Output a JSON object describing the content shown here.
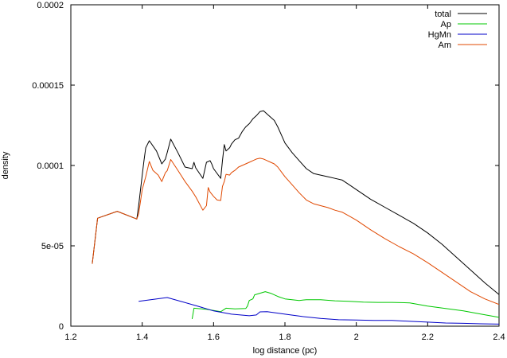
{
  "chart_data": {
    "type": "line",
    "xlabel": "log distance (pc)",
    "ylabel": "density",
    "xlim": [
      1.2,
      2.4
    ],
    "ylim": [
      0,
      0.0002
    ],
    "x_ticks": [
      1.2,
      1.4,
      1.6,
      1.8,
      2.0,
      2.2,
      2.4
    ],
    "x_tick_labels": [
      "1.2",
      "1.4",
      "1.6",
      "1.8",
      "2",
      "2.2",
      "2.4"
    ],
    "y_ticks": [
      0,
      5e-05,
      0.0001,
      0.00015,
      0.0002
    ],
    "y_tick_labels": [
      "0",
      "5e-05",
      "0.0001",
      "0.00015",
      "0.0002"
    ],
    "grid": false,
    "legend_position": "top-right",
    "series": [
      {
        "name": "total",
        "color": "#000000",
        "points": [
          [
            1.26,
            3.88e-05
          ],
          [
            1.275,
            6.72e-05
          ],
          [
            1.33,
            7.15e-05
          ],
          [
            1.385,
            6.67e-05
          ],
          [
            1.39,
            7.5e-05
          ],
          [
            1.4,
            9.4e-05
          ],
          [
            1.405,
            0.000103
          ],
          [
            1.41,
            0.000111
          ],
          [
            1.42,
            0.0001154
          ],
          [
            1.44,
            0.000109
          ],
          [
            1.455,
            0.000101
          ],
          [
            1.465,
            0.000104
          ],
          [
            1.47,
            0.000108
          ],
          [
            1.48,
            0.0001164
          ],
          [
            1.5,
            0.000108
          ],
          [
            1.52,
            9.9e-05
          ],
          [
            1.54,
            9.8e-05
          ],
          [
            1.545,
            0.000102
          ],
          [
            1.55,
            9.85e-05
          ],
          [
            1.57,
            9.2e-05
          ],
          [
            1.58,
            0.000102
          ],
          [
            1.59,
            0.000103
          ],
          [
            1.595,
            0.0001009
          ],
          [
            1.6,
            9.8e-05
          ],
          [
            1.62,
            9.2e-05
          ],
          [
            1.625,
            0.000103
          ],
          [
            1.63,
            0.000113
          ],
          [
            1.635,
            0.000109
          ],
          [
            1.645,
            0.000111
          ],
          [
            1.65,
            0.0001133
          ],
          [
            1.66,
            0.000116
          ],
          [
            1.67,
            0.000117
          ],
          [
            1.68,
            0.000121
          ],
          [
            1.69,
            0.000124
          ],
          [
            1.7,
            0.000126
          ],
          [
            1.71,
            0.000129
          ],
          [
            1.72,
            0.000131
          ],
          [
            1.73,
            0.0001335
          ],
          [
            1.74,
            0.000134
          ],
          [
            1.75,
            0.000132
          ],
          [
            1.76,
            0.00013
          ],
          [
            1.77,
            0.000128
          ],
          [
            1.78,
            0.000124
          ],
          [
            1.79,
            0.000119
          ],
          [
            1.8,
            0.000114
          ],
          [
            1.82,
            0.000108
          ],
          [
            1.84,
            0.000103
          ],
          [
            1.86,
            9.8e-05
          ],
          [
            1.88,
            9.5e-05
          ],
          [
            1.9,
            9.4e-05
          ],
          [
            1.92,
            9.3e-05
          ],
          [
            1.94,
            9.2e-05
          ],
          [
            1.96,
            9.1e-05
          ],
          [
            1.98,
            8.8e-05
          ],
          [
            2.0,
            8.5e-05
          ],
          [
            2.04,
            7.9e-05
          ],
          [
            2.08,
            7.4e-05
          ],
          [
            2.12,
            6.9e-05
          ],
          [
            2.16,
            6.4e-05
          ],
          [
            2.2,
            5.8e-05
          ],
          [
            2.24,
            5.1e-05
          ],
          [
            2.28,
            4.3e-05
          ],
          [
            2.32,
            3.5e-05
          ],
          [
            2.36,
            2.7e-05
          ],
          [
            2.4,
            1.97e-05
          ]
        ]
      },
      {
        "name": "Ap",
        "color": "#00c800",
        "points": [
          [
            1.54,
            4.5e-06
          ],
          [
            1.545,
            1.12e-05
          ],
          [
            1.58,
            1.05e-05
          ],
          [
            1.62,
            9e-06
          ],
          [
            1.635,
            1.12e-05
          ],
          [
            1.66,
            1.08e-05
          ],
          [
            1.69,
            1.1e-05
          ],
          [
            1.695,
            1.25e-05
          ],
          [
            1.7,
            1.6e-05
          ],
          [
            1.71,
            1.7e-05
          ],
          [
            1.715,
            1.95e-05
          ],
          [
            1.73,
            2.05e-05
          ],
          [
            1.745,
            2.15e-05
          ],
          [
            1.76,
            2.05e-05
          ],
          [
            1.78,
            1.85e-05
          ],
          [
            1.8,
            1.7e-05
          ],
          [
            1.84,
            1.6e-05
          ],
          [
            1.86,
            1.65e-05
          ],
          [
            1.9,
            1.65e-05
          ],
          [
            1.94,
            1.58e-05
          ],
          [
            1.98,
            1.55e-05
          ],
          [
            2.02,
            1.5e-05
          ],
          [
            2.06,
            1.48e-05
          ],
          [
            2.1,
            1.48e-05
          ],
          [
            2.15,
            1.45e-05
          ],
          [
            2.2,
            1.25e-05
          ],
          [
            2.25,
            1.1e-05
          ],
          [
            2.3,
            9.5e-06
          ],
          [
            2.35,
            7.5e-06
          ],
          [
            2.4,
            5.5e-06
          ]
        ]
      },
      {
        "name": "HgMn",
        "color": "#0000c8",
        "points": [
          [
            1.39,
            1.55e-05
          ],
          [
            1.47,
            1.78e-05
          ],
          [
            1.55,
            1.28e-05
          ],
          [
            1.6,
            9.5e-06
          ],
          [
            1.65,
            7.5e-06
          ],
          [
            1.7,
            6.5e-06
          ],
          [
            1.72,
            7e-06
          ],
          [
            1.73,
            8.9e-06
          ],
          [
            1.75,
            9e-06
          ],
          [
            1.8,
            7.5e-06
          ],
          [
            1.85,
            6e-06
          ],
          [
            1.9,
            4.8e-06
          ],
          [
            1.95,
            4e-06
          ],
          [
            2.0,
            3.8e-06
          ],
          [
            2.05,
            3.6e-06
          ],
          [
            2.1,
            3.6e-06
          ],
          [
            2.15,
            3e-06
          ],
          [
            2.2,
            2.5e-06
          ],
          [
            2.25,
            2e-06
          ],
          [
            2.3,
            1.8e-06
          ],
          [
            2.35,
            1.5e-06
          ],
          [
            2.4,
            1.3e-06
          ]
        ]
      },
      {
        "name": "Am",
        "color": "#e04800",
        "points": [
          [
            1.26,
            3.88e-05
          ],
          [
            1.275,
            6.72e-05
          ],
          [
            1.33,
            7.15e-05
          ],
          [
            1.385,
            6.67e-05
          ],
          [
            1.39,
            7e-05
          ],
          [
            1.4,
            8.5e-05
          ],
          [
            1.41,
            9.3e-05
          ],
          [
            1.42,
            0.0001025
          ],
          [
            1.43,
            9.7e-05
          ],
          [
            1.445,
            9.4e-05
          ],
          [
            1.455,
            9e-05
          ],
          [
            1.465,
            9.55e-05
          ],
          [
            1.47,
            9.68e-05
          ],
          [
            1.48,
            0.0001037
          ],
          [
            1.5,
            9.7e-05
          ],
          [
            1.52,
            9e-05
          ],
          [
            1.54,
            8.4e-05
          ],
          [
            1.55,
            8.05e-05
          ],
          [
            1.57,
            7.22e-05
          ],
          [
            1.58,
            7.5e-05
          ],
          [
            1.585,
            8.63e-05
          ],
          [
            1.59,
            8.35e-05
          ],
          [
            1.6,
            8.08e-05
          ],
          [
            1.61,
            7.85e-05
          ],
          [
            1.62,
            7.82e-05
          ],
          [
            1.625,
            8.7e-05
          ],
          [
            1.63,
            9e-05
          ],
          [
            1.635,
            9.45e-05
          ],
          [
            1.645,
            9.4e-05
          ],
          [
            1.65,
            9.55e-05
          ],
          [
            1.66,
            9.7e-05
          ],
          [
            1.67,
            9.9e-05
          ],
          [
            1.68,
            0.0001
          ],
          [
            1.69,
            0.000101
          ],
          [
            1.7,
            0.000102
          ],
          [
            1.71,
            0.000103
          ],
          [
            1.72,
            0.000104
          ],
          [
            1.73,
            0.0001045
          ],
          [
            1.74,
            0.000104
          ],
          [
            1.75,
            0.000103
          ],
          [
            1.76,
            0.000102
          ],
          [
            1.77,
            0.000101
          ],
          [
            1.78,
            9.9e-05
          ],
          [
            1.79,
            9.6e-05
          ],
          [
            1.8,
            9.3e-05
          ],
          [
            1.82,
            8.8e-05
          ],
          [
            1.84,
            8.3e-05
          ],
          [
            1.86,
            7.85e-05
          ],
          [
            1.88,
            7.62e-05
          ],
          [
            1.9,
            7.5e-05
          ],
          [
            1.92,
            7.38e-05
          ],
          [
            1.94,
            7.22e-05
          ],
          [
            1.96,
            7.1e-05
          ],
          [
            1.98,
            6.85e-05
          ],
          [
            2.0,
            6.6e-05
          ],
          [
            2.04,
            6e-05
          ],
          [
            2.08,
            5.45e-05
          ],
          [
            2.12,
            4.95e-05
          ],
          [
            2.16,
            4.5e-05
          ],
          [
            2.2,
            3.95e-05
          ],
          [
            2.24,
            3.35e-05
          ],
          [
            2.28,
            2.75e-05
          ],
          [
            2.32,
            2.15e-05
          ],
          [
            2.36,
            1.7e-05
          ],
          [
            2.4,
            1.35e-05
          ]
        ]
      }
    ]
  }
}
